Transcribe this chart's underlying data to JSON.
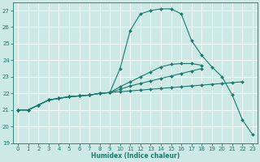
{
  "xlabel": "Humidex (Indice chaleur)",
  "bg_color": "#cce9e5",
  "line_color": "#1a7a6e",
  "grid_color": "#ffffff",
  "xlim": [
    -0.5,
    23.5
  ],
  "ylim": [
    19.0,
    27.5
  ],
  "xticks": [
    0,
    1,
    2,
    3,
    4,
    5,
    6,
    7,
    8,
    9,
    10,
    11,
    12,
    13,
    14,
    15,
    16,
    17,
    18,
    19,
    20,
    21,
    22,
    23
  ],
  "yticks": [
    19,
    20,
    21,
    22,
    23,
    24,
    25,
    26,
    27
  ],
  "lines": [
    {
      "x": [
        0,
        1,
        2,
        3,
        4,
        5,
        6,
        7,
        8,
        9,
        10,
        11,
        12,
        13,
        14,
        15,
        16,
        17,
        18,
        19,
        20,
        21,
        22,
        23
      ],
      "y": [
        21.0,
        21.0,
        21.3,
        21.6,
        21.7,
        21.8,
        21.85,
        21.9,
        22.0,
        22.05,
        23.5,
        25.8,
        26.8,
        27.0,
        27.1,
        27.1,
        26.8,
        25.2,
        24.3,
        23.6,
        23.0,
        21.9,
        20.4,
        19.5
      ]
    },
    {
      "x": [
        0,
        1,
        2,
        3,
        4,
        5,
        6,
        7,
        8,
        9,
        10,
        11,
        12,
        13,
        14,
        15,
        16,
        17,
        18,
        19,
        20,
        21,
        22,
        23
      ],
      "y": [
        21.0,
        21.0,
        21.3,
        21.6,
        21.7,
        21.8,
        21.85,
        21.9,
        22.0,
        22.05,
        22.4,
        22.7,
        23.0,
        23.3,
        23.6,
        23.75,
        23.8,
        23.8,
        23.7,
        null,
        null,
        null,
        null,
        null
      ]
    },
    {
      "x": [
        0,
        1,
        2,
        3,
        4,
        5,
        6,
        7,
        8,
        9,
        10,
        11,
        12,
        13,
        14,
        15,
        16,
        17,
        18,
        19,
        20,
        21,
        22,
        23
      ],
      "y": [
        21.0,
        21.0,
        21.3,
        21.6,
        21.7,
        21.8,
        21.85,
        21.9,
        22.0,
        22.05,
        22.25,
        22.45,
        22.6,
        22.75,
        22.9,
        23.05,
        23.2,
        23.35,
        23.5,
        null,
        null,
        null,
        null,
        null
      ]
    },
    {
      "x": [
        0,
        1,
        2,
        3,
        4,
        5,
        6,
        7,
        8,
        9,
        10,
        11,
        12,
        13,
        14,
        15,
        16,
        17,
        18,
        19,
        20,
        21,
        22,
        23
      ],
      "y": [
        21.0,
        21.0,
        21.3,
        21.6,
        21.7,
        21.8,
        21.85,
        21.9,
        22.0,
        22.05,
        22.1,
        22.15,
        22.2,
        22.25,
        22.3,
        22.35,
        22.4,
        22.45,
        22.5,
        22.55,
        22.6,
        22.65,
        22.7,
        null
      ]
    }
  ]
}
